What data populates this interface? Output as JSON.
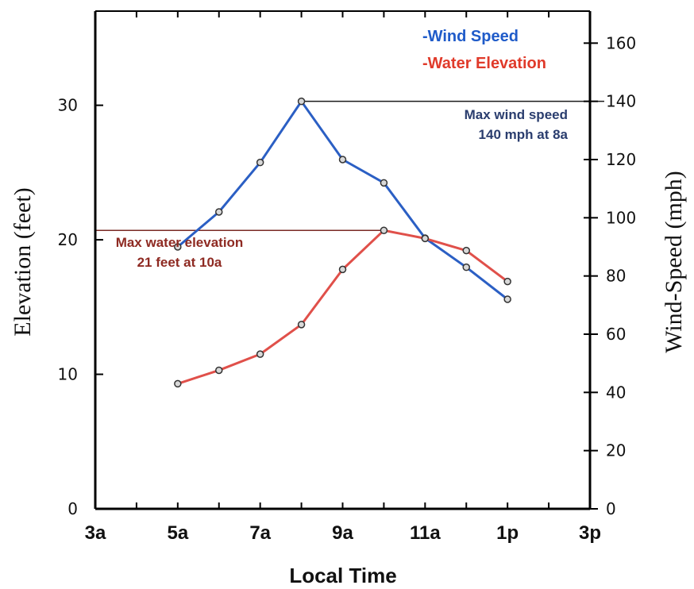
{
  "chart_data": {
    "type": "line",
    "xlabel": "Local Time",
    "ylabel_left": "Elevation (feet)",
    "ylabel_right": "Wind-Speed (mph)",
    "x_ticks": [
      {
        "hour": 3,
        "label": "3a"
      },
      {
        "hour": 5,
        "label": "5a"
      },
      {
        "hour": 7,
        "label": "7a"
      },
      {
        "hour": 9,
        "label": "9a"
      },
      {
        "hour": 11,
        "label": "11a"
      },
      {
        "hour": 13,
        "label": "1p"
      },
      {
        "hour": 15,
        "label": "3p"
      }
    ],
    "xlim_hours": [
      3,
      15
    ],
    "ylim_left": [
      0,
      37
    ],
    "ylim_right": [
      0,
      171
    ],
    "yticks_left": [
      0,
      10,
      20,
      30
    ],
    "yticks_right": [
      0,
      20,
      40,
      60,
      80,
      100,
      120,
      140,
      160
    ],
    "series": [
      {
        "name": "Wind Speed",
        "axis": "right",
        "color": "#2b5fc4",
        "x_hours": [
          5,
          6,
          7,
          8,
          9,
          10,
          11,
          12,
          13
        ],
        "values": [
          90,
          102,
          119,
          140,
          120,
          112,
          93,
          83,
          72
        ]
      },
      {
        "name": "Water Elevation",
        "axis": "left",
        "color": "#e0504a",
        "x_hours": [
          5,
          6,
          7,
          8,
          9,
          10,
          11,
          12,
          13
        ],
        "values": [
          9.3,
          10.3,
          11.5,
          13.7,
          17.8,
          20.7,
          20.1,
          19.2,
          16.9
        ]
      }
    ],
    "legend": [
      {
        "label": "-Wind Speed",
        "color": "#1f5bc9"
      },
      {
        "label": "-Water Elevation",
        "color": "#e03a2a"
      }
    ],
    "legend_position": "top-right",
    "annotations": [
      {
        "lines": [
          "Max wind speed",
          "140 mph at 8a"
        ],
        "color": "#2a3d6e"
      },
      {
        "lines": [
          "Max water elevation",
          "21 feet at 10a"
        ],
        "color": "#8e2a22"
      }
    ]
  }
}
